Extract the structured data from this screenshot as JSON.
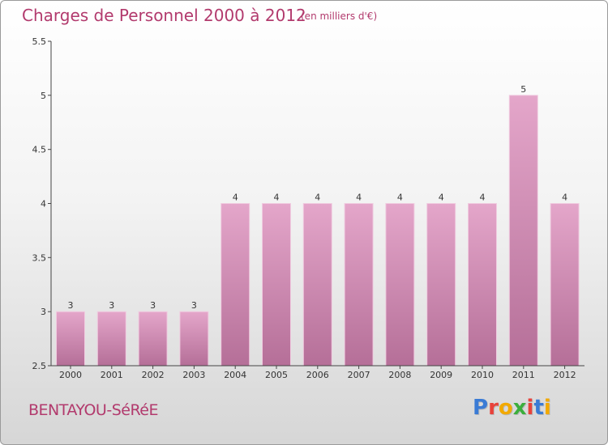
{
  "header": {
    "title": "Charges de Personnel 2000 à 2012",
    "unit": "(en milliers d'€)"
  },
  "footer": {
    "commune": "BENTAYOU-SéRéE",
    "logo_text": "Proxiti",
    "logo_colors": [
      "#3a7bd5",
      "#e8423b",
      "#f2a900",
      "#3cae3c",
      "#e8423b",
      "#3a7bd5",
      "#f2a900"
    ]
  },
  "colors": {
    "bar_top": "#e4a6ca",
    "bar_bottom": "#b56f98",
    "bar_edge": "#f0cce0",
    "axis": "#444444",
    "title": "#b23a6d"
  },
  "chart_data": {
    "type": "bar",
    "categories": [
      "2000",
      "2001",
      "2002",
      "2003",
      "2004",
      "2005",
      "2006",
      "2007",
      "2008",
      "2009",
      "2010",
      "2011",
      "2012"
    ],
    "values": [
      3,
      3,
      3,
      3,
      4,
      4,
      4,
      4,
      4,
      4,
      4,
      5,
      4
    ],
    "data_labels": [
      "3",
      "3",
      "3",
      "3",
      "4",
      "4",
      "4",
      "4",
      "4",
      "4",
      "4",
      "5",
      "4"
    ],
    "y_ticks": [
      "2.5",
      "3",
      "3.5",
      "4",
      "4.5",
      "5",
      "5.5"
    ],
    "ylim": [
      2.5,
      5.5
    ],
    "grid": false,
    "title": "Charges de Personnel 2000 à 2012",
    "xlabel": "",
    "ylabel": ""
  }
}
